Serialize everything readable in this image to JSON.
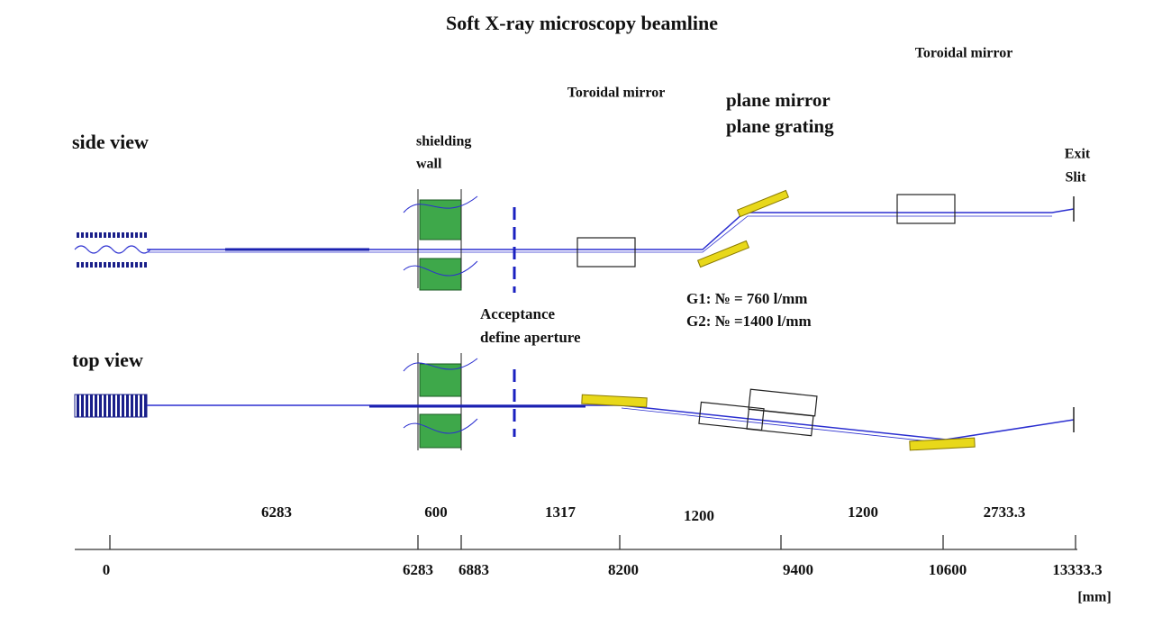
{
  "title": "Soft X-ray microscopy beamline",
  "views": [
    "side view",
    "top view"
  ],
  "components": {
    "toroidal_mirror_1": "Toroidal mirror",
    "toroidal_mirror_2": "Toroidal mirror",
    "monochromator": [
      "plane mirror",
      "plane grating"
    ],
    "shielding_wall": [
      "shielding",
      "wall"
    ],
    "exit_slit": [
      "Exit",
      "Slit"
    ],
    "aperture": [
      "Acceptance",
      "define aperture"
    ]
  },
  "gratings": [
    "G1:  № = 760 l/mm",
    "G2:  № =1400 l/mm"
  ],
  "segments": [
    6283,
    600,
    1317,
    1200,
    1200,
    2733.3
  ],
  "positions": [
    0,
    6283,
    6883,
    8200,
    9400,
    10600,
    13333.3
  ],
  "unit": "[mm]"
}
